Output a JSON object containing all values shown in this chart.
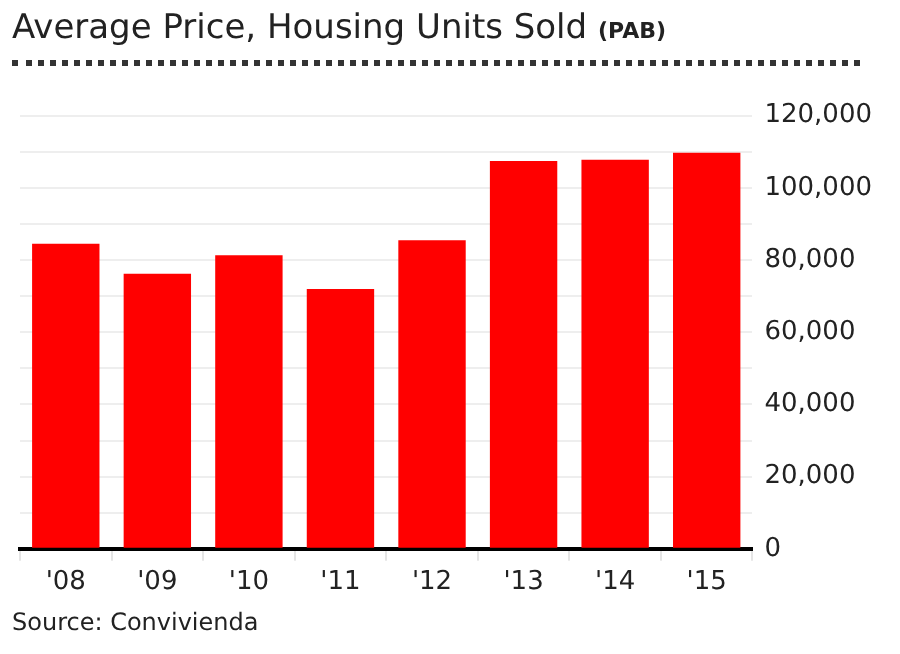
{
  "chart_data": {
    "type": "bar",
    "title": "Average Price, Housing Units Sold",
    "subtitle": "(PAB)",
    "categories": [
      "'08",
      "'09",
      "'10",
      "'11",
      "'12",
      "'13",
      "'14",
      "'15"
    ],
    "values": [
      84500,
      76200,
      81300,
      72000,
      85500,
      107400,
      107800,
      109700
    ],
    "color": "#ff0000",
    "ylim": [
      0,
      120000
    ],
    "yticks": [
      0,
      {
        "value": 10000,
        "label": null
      },
      {
        "value": 20000,
        "label": "20,000"
      },
      {
        "value": 30000,
        "label": null
      },
      {
        "value": 40000,
        "label": "40,000"
      },
      {
        "value": 50000,
        "label": null
      },
      {
        "value": 60000,
        "label": "60,000"
      },
      {
        "value": 70000,
        "label": null
      },
      {
        "value": 80000,
        "label": "80,000"
      },
      {
        "value": 90000,
        "label": null
      },
      {
        "value": 100000,
        "label": "100,000"
      },
      {
        "value": 110000,
        "label": null
      },
      {
        "value": 120000,
        "label": "120,000"
      }
    ],
    "grid": true,
    "annotations": [
      "Source: Convivienda"
    ]
  }
}
